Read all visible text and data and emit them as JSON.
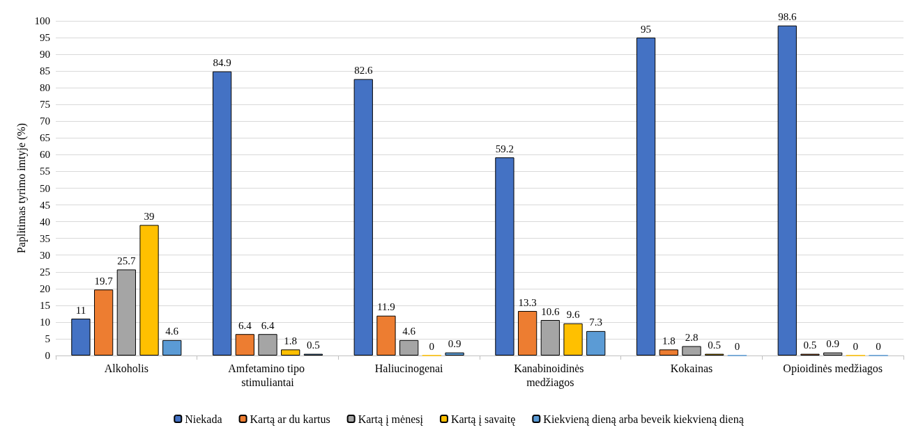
{
  "chart_data": {
    "type": "bar",
    "ylabel": "Paplitimas tyrimo imtyje (%)",
    "categories": [
      "Alkoholis",
      "Amfetamino tipo stimuliantai",
      "Haliucinogenai",
      "Kanabinoidinės medžiagos",
      "Kokainas",
      "Opioidinės medžiagos"
    ],
    "series": [
      {
        "name": "Niekada",
        "color": "#4472c4",
        "values": [
          11,
          84.9,
          82.6,
          59.2,
          95,
          98.6
        ]
      },
      {
        "name": "Kartą ar du kartus",
        "color": "#ed7d31",
        "values": [
          19.7,
          6.4,
          11.9,
          13.3,
          1.8,
          0.5
        ]
      },
      {
        "name": "Kartą į mėnesį",
        "color": "#a5a5a5",
        "values": [
          25.7,
          6.4,
          4.6,
          10.6,
          2.8,
          0.9
        ]
      },
      {
        "name": "Kartą į savaitę",
        "color": "#ffc000",
        "values": [
          39,
          1.8,
          0,
          9.6,
          0.5,
          0
        ]
      },
      {
        "name": "Kiekvieną dieną arba beveik kiekvieną dieną",
        "color": "#5b9bd5",
        "values": [
          4.6,
          0.5,
          0.9,
          7.3,
          0,
          0
        ]
      }
    ],
    "ylim": [
      0,
      100
    ],
    "yticks": [
      0,
      5,
      10,
      15,
      20,
      25,
      30,
      35,
      40,
      45,
      50,
      55,
      60,
      65,
      70,
      75,
      80,
      85,
      90,
      95,
      100
    ],
    "grid": "y",
    "legend": "bottom",
    "data_labels": true
  }
}
